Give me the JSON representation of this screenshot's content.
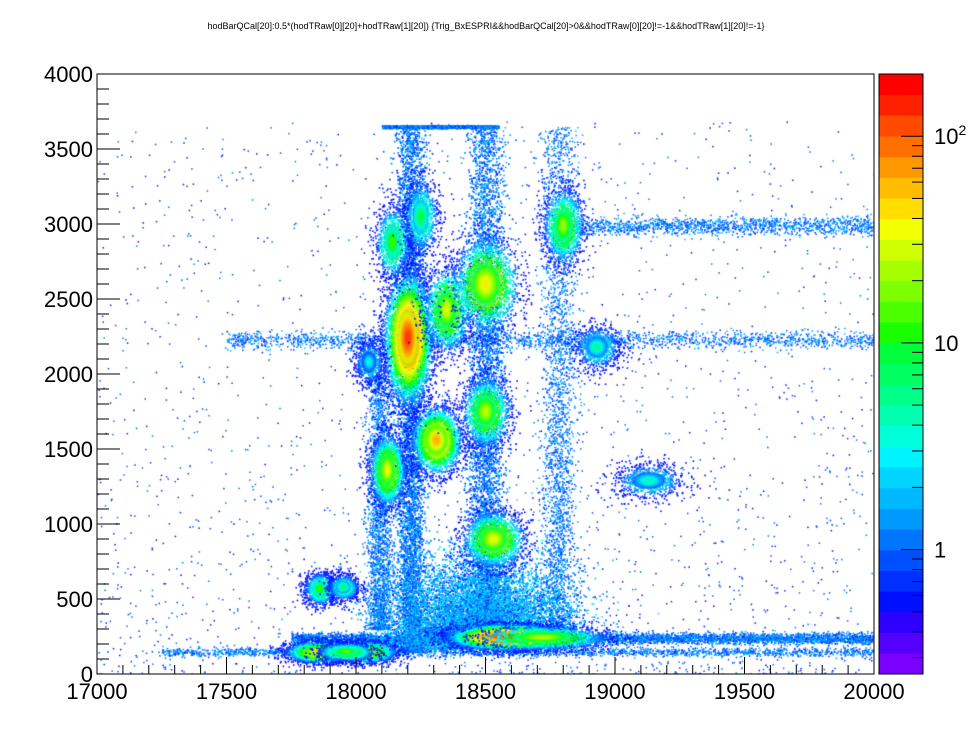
{
  "chart_data": {
    "type": "heatmap",
    "title": "hodBarQCal[20]:0.5*(hodTRaw[0][20]+hodTRaw[1][20]) {Trig_BxESPRI&&hodBarQCal[20]>0&&hodTRaw[0][20]!=-1&&hodTRaw[1][20]!=-1}",
    "xlabel": "",
    "ylabel": "",
    "xlim": [
      17000,
      20000
    ],
    "ylim": [
      0,
      4000
    ],
    "x_ticks": [
      "17000",
      "17500",
      "18000",
      "18500",
      "19000",
      "19500",
      "20000"
    ],
    "y_ticks": [
      "0",
      "500",
      "1000",
      "1500",
      "2000",
      "2500",
      "3000",
      "3500",
      "4000"
    ],
    "colorbar": {
      "scale": "log",
      "labels": [
        {
          "value": 1,
          "text": "1"
        },
        {
          "value": 10,
          "text": "10"
        },
        {
          "value": 100,
          "base": "10",
          "exp": "2"
        }
      ],
      "min": 0.25,
      "max": 200,
      "colors": [
        "#7a00ff",
        "#5500ff",
        "#2d00ff",
        "#0010ff",
        "#0030ff",
        "#0050ff",
        "#0075ff",
        "#009aff",
        "#00b8ff",
        "#00d5ff",
        "#00f4ff",
        "#00ffd8",
        "#00ffb0",
        "#00ff88",
        "#00ff60",
        "#00ff3a",
        "#1aff00",
        "#4cff00",
        "#7cff00",
        "#a6ff00",
        "#cfff00",
        "#f2ff00",
        "#ffde00",
        "#ffbc00",
        "#ff9800",
        "#ff7000",
        "#ff4a00",
        "#ff2000",
        "#ff0000"
      ]
    },
    "clusters": [
      {
        "x": 17860,
        "y": 150,
        "sx": 40,
        "sy": 22,
        "peak": 60
      },
      {
        "x": 18040,
        "y": 150,
        "sx": 35,
        "sy": 22,
        "peak": 45
      },
      {
        "x": 17960,
        "y": 150,
        "sx": 35,
        "sy": 20,
        "peak": 20
      },
      {
        "x": 18580,
        "y": 250,
        "sx": 65,
        "sy": 25,
        "peak": 200
      },
      {
        "x": 18720,
        "y": 245,
        "sx": 80,
        "sy": 25,
        "peak": 30
      },
      {
        "x": 17860,
        "y": 570,
        "sx": 20,
        "sy": 35,
        "peak": 15
      },
      {
        "x": 17950,
        "y": 580,
        "sx": 20,
        "sy": 30,
        "peak": 8
      },
      {
        "x": 18530,
        "y": 900,
        "sx": 38,
        "sy": 60,
        "peak": 40
      },
      {
        "x": 18120,
        "y": 1360,
        "sx": 22,
        "sy": 75,
        "peak": 40
      },
      {
        "x": 18310,
        "y": 1560,
        "sx": 30,
        "sy": 70,
        "peak": 70
      },
      {
        "x": 18500,
        "y": 1750,
        "sx": 30,
        "sy": 75,
        "peak": 30
      },
      {
        "x": 18200,
        "y": 2240,
        "sx": 28,
        "sy": 130,
        "peak": 150
      },
      {
        "x": 18350,
        "y": 2430,
        "sx": 28,
        "sy": 90,
        "peak": 35
      },
      {
        "x": 18500,
        "y": 2600,
        "sx": 40,
        "sy": 100,
        "peak": 45
      },
      {
        "x": 18140,
        "y": 2880,
        "sx": 22,
        "sy": 80,
        "peak": 15
      },
      {
        "x": 18250,
        "y": 3050,
        "sx": 22,
        "sy": 80,
        "peak": 10
      },
      {
        "x": 18800,
        "y": 2990,
        "sx": 25,
        "sy": 80,
        "peak": 25
      },
      {
        "x": 18930,
        "y": 2180,
        "sx": 30,
        "sy": 50,
        "peak": 6
      },
      {
        "x": 19130,
        "y": 1290,
        "sx": 45,
        "sy": 40,
        "peak": 5
      },
      {
        "x": 18050,
        "y": 2080,
        "sx": 20,
        "sy": 50,
        "peak": 4
      }
    ],
    "bands": [
      {
        "orientation": "vertical",
        "x": 18210,
        "sx": 28,
        "y0": 150,
        "y1": 3650,
        "density": 1.4
      },
      {
        "orientation": "vertical",
        "x": 18500,
        "sx": 35,
        "y0": 200,
        "y1": 3650,
        "density": 1.2
      },
      {
        "orientation": "vertical",
        "x": 18780,
        "sx": 35,
        "y0": 200,
        "y1": 3650,
        "density": 0.5
      },
      {
        "orientation": "vertical",
        "x": 18090,
        "sx": 25,
        "y0": 300,
        "y1": 2000,
        "density": 0.4
      },
      {
        "orientation": "horizontal",
        "y": 240,
        "sy": 18,
        "x0": 17750,
        "x1": 20000,
        "density": 1.0
      },
      {
        "orientation": "horizontal",
        "y": 150,
        "sy": 15,
        "x0": 17250,
        "x1": 20000,
        "density": 0.35
      },
      {
        "orientation": "horizontal",
        "y": 2230,
        "sy": 30,
        "x0": 17500,
        "x1": 20000,
        "density": 0.35
      },
      {
        "orientation": "horizontal",
        "y": 2990,
        "sy": 30,
        "x0": 18800,
        "x1": 20000,
        "density": 0.25
      },
      {
        "orientation": "horizontal",
        "y": 3650,
        "sy": 4,
        "x0": 18100,
        "x1": 18550,
        "density": 0.6
      }
    ]
  }
}
